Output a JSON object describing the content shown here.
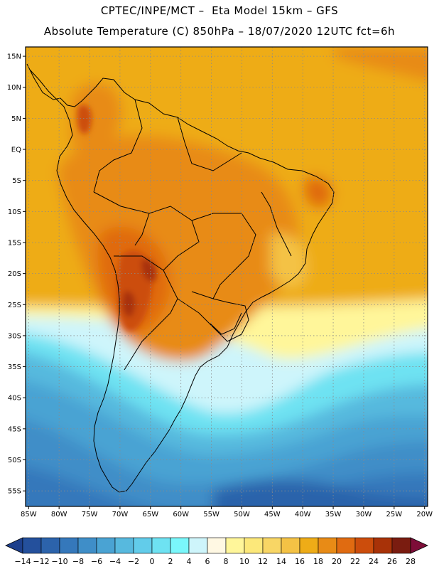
{
  "header": {
    "title_line1": "CPTEC/INPE/MCT –  Eta Model 15km – GFS",
    "title_line2": "Absolute Temperature (C) 850hPa – 18/07/2020 12UTC fct=6h"
  },
  "chart_data": {
    "type": "heatmap",
    "x_ticks": [
      "85W",
      "80W",
      "75W",
      "70W",
      "65W",
      "60W",
      "55W",
      "50W",
      "45W",
      "40W",
      "35W",
      "30W",
      "25W",
      "20W"
    ],
    "y_ticks": [
      "15N",
      "10N",
      "5N",
      "EQ",
      "5S",
      "10S",
      "15S",
      "20S",
      "25S",
      "30S",
      "35S",
      "40S",
      "45S",
      "50S",
      "55S"
    ],
    "xlim": [
      -85.5,
      -19.5
    ],
    "ylim": [
      -57.5,
      16.5
    ],
    "grid": true,
    "colorbar": {
      "labels": [
        "-14",
        "-12",
        "-10",
        "-8",
        "-6",
        "-4",
        "-2",
        "0",
        "2",
        "4",
        "6",
        "8",
        "10",
        "12",
        "14",
        "16",
        "18",
        "20",
        "22",
        "24",
        "26",
        "28"
      ],
      "colors": [
        "#1d3f8c",
        "#24509c",
        "#2c63ab",
        "#3578bb",
        "#3f8ec8",
        "#4aa3d3",
        "#57b9de",
        "#62ccea",
        "#6ee2f2",
        "#7af7fb",
        "#cef5fb",
        "#fff8e3",
        "#fff69a",
        "#fce87a",
        "#f8d665",
        "#f4c245",
        "#eeac17",
        "#e88b16",
        "#e06b11",
        "#cc4d0c",
        "#a83208",
        "#7a1c10",
        "#7d0d38"
      ]
    }
  }
}
